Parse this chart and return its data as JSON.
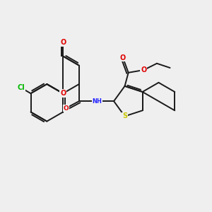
{
  "bg_color": "#efefef",
  "fig_size": [
    3.0,
    3.0
  ],
  "dpi": 100,
  "bond_color": "#1a1a1a",
  "bond_lw": 1.4,
  "atom_colors": {
    "O": "#e00000",
    "N": "#2020ff",
    "S": "#c8c800",
    "Cl": "#00b800",
    "C": "#1a1a1a"
  },
  "font_size": 7.0,
  "xlim": [
    0.0,
    9.5
  ],
  "ylim": [
    0.3,
    6.0
  ]
}
